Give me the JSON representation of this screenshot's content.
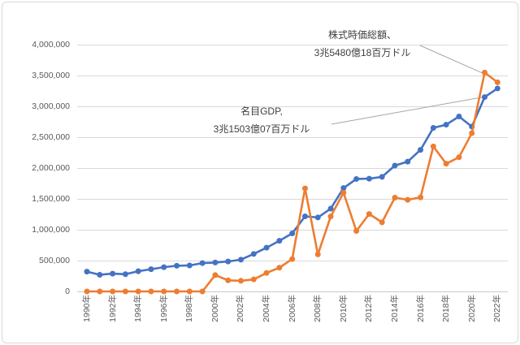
{
  "chart_data": {
    "type": "line",
    "title": "",
    "xlabel": "",
    "ylabel": "",
    "x": [
      1990,
      1991,
      1992,
      1993,
      1994,
      1995,
      1996,
      1997,
      1998,
      1999,
      2000,
      2001,
      2002,
      2003,
      2004,
      2005,
      2006,
      2007,
      2008,
      2009,
      2010,
      2011,
      2012,
      2013,
      2014,
      2015,
      2016,
      2017,
      2018,
      2019,
      2020,
      2021,
      2022
    ],
    "series": [
      {
        "name": "名目GDP",
        "color": "#4472C4",
        "values": [
          320979,
          270105,
          288208,
          279296,
          327275,
          360282,
          392897,
          415868,
          421351,
          458820,
          468395,
          485441,
          514938,
          607699,
          709149,
          820382,
          940260,
          1216736,
          1198895,
          1341887,
          1675615,
          1823050,
          1827638,
          1856722,
          2039127,
          2103588,
          2294797,
          2651474,
          2702930,
          2835606,
          2671596,
          3150307,
          3290000
        ]
      },
      {
        "name": "株式時価総額",
        "color": "#ED7D31",
        "values": [
          0,
          0,
          0,
          0,
          0,
          0,
          0,
          0,
          0,
          0,
          265000,
          180000,
          172000,
          195000,
          300000,
          385000,
          525000,
          1670000,
          600000,
          1215000,
          1600000,
          980000,
          1255000,
          1120000,
          1520000,
          1485000,
          1525000,
          2350000,
          2070000,
          2175000,
          2565000,
          3548018,
          3390000
        ]
      }
    ],
    "ylim": [
      0,
      4000000
    ],
    "y_tick_step": 500000,
    "y_tick_labels": [
      "0",
      "500,000",
      "1,000,000",
      "1,500,000",
      "2,000,000",
      "2,500,000",
      "3,000,000",
      "3,500,000",
      "4,000,000"
    ],
    "x_tick_labels": [
      "1990年",
      "1992年",
      "1994年",
      "1996年",
      "1998年",
      "2000年",
      "2002年",
      "2004年",
      "2006年",
      "2008年",
      "2010年",
      "2012年",
      "2014年",
      "2016年",
      "2018年",
      "2020年",
      "2022年"
    ],
    "grid": true,
    "legend": "none",
    "annotations": [
      {
        "lines": [
          "株式時価総額、",
          "3兆5480億18百万ドル"
        ],
        "series": 1,
        "year": 2021,
        "value": 3548018
      },
      {
        "lines": [
          "名目GDP,",
          "3兆1503億07百万ドル"
        ],
        "series": 0,
        "year": 2021,
        "value": 3150307
      }
    ]
  },
  "colors": {
    "gdp_line": "#4472C4",
    "market_cap_line": "#ED7D31",
    "gridline": "#D9D9D9",
    "axis_text": "#595959",
    "annotation_text": "#404040",
    "leader_line": "#A6A6A6"
  }
}
